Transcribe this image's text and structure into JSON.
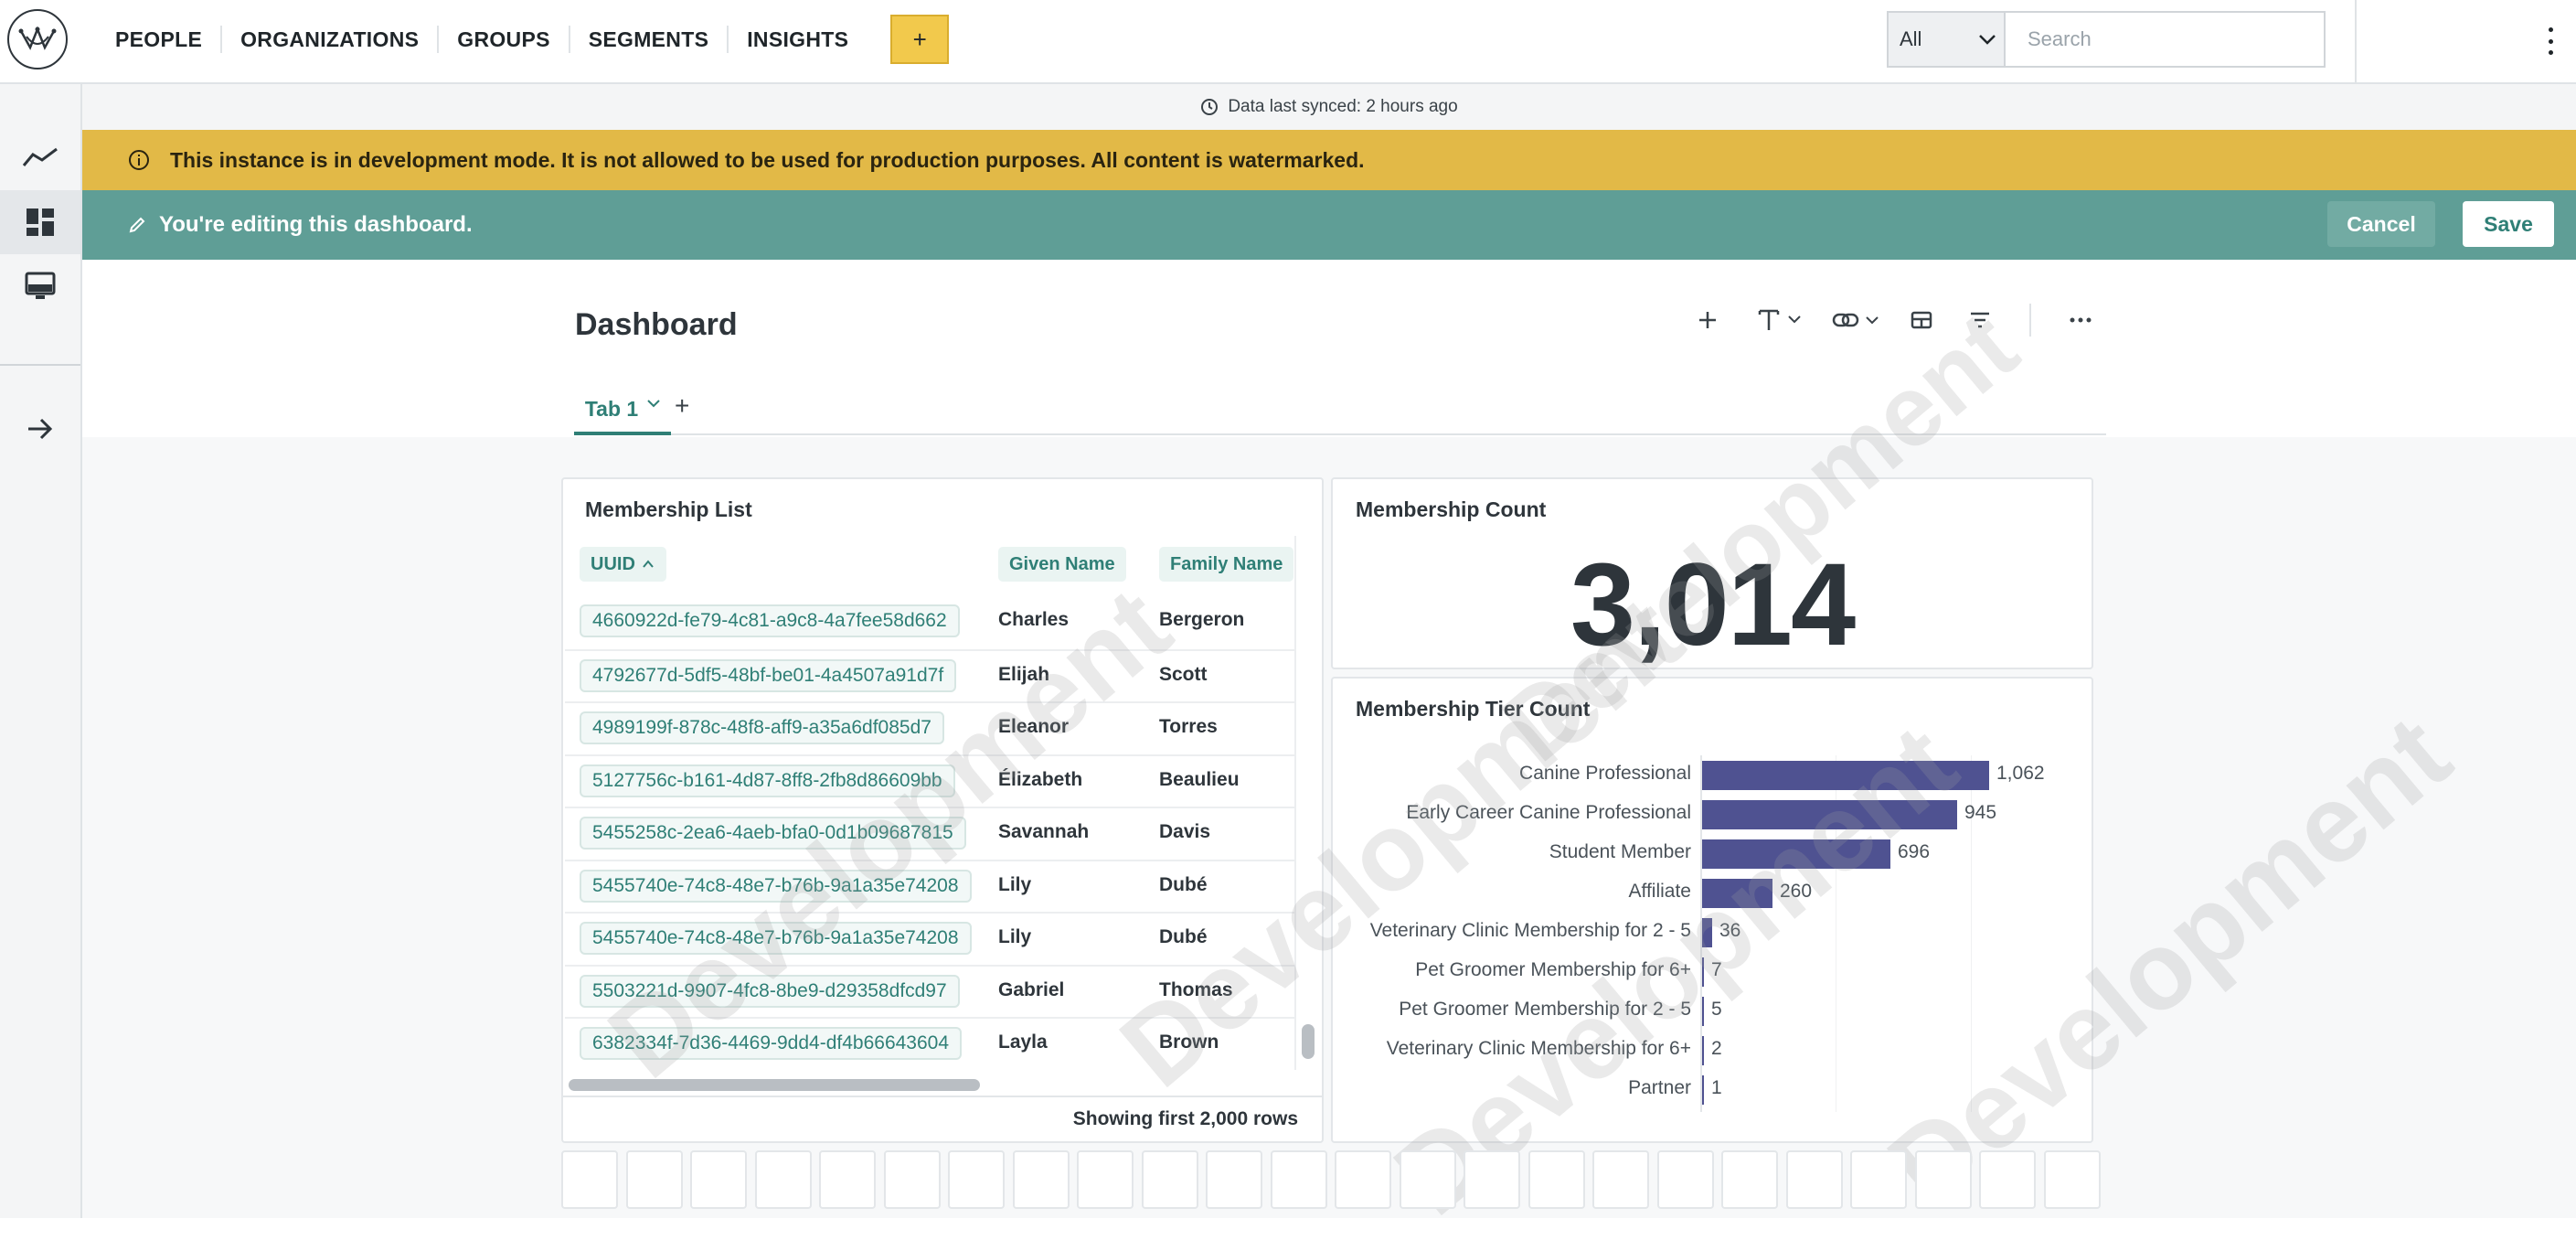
{
  "nav": {
    "items": [
      "PEOPLE",
      "ORGANIZATIONS",
      "GROUPS",
      "SEGMENTS",
      "INSIGHTS"
    ],
    "add_label": "+"
  },
  "search": {
    "scope": "All",
    "placeholder": "Search"
  },
  "sync": {
    "text": "Data last synced: 2 hours ago"
  },
  "dev_banner": {
    "text": "This instance is in development mode. It is not allowed to be used for production purposes. All content is watermarked."
  },
  "edit_banner": {
    "text": "You're editing this dashboard.",
    "cancel_label": "Cancel",
    "save_label": "Save"
  },
  "dashboard": {
    "title": "Dashboard",
    "tabs": [
      {
        "label": "Tab 1"
      }
    ],
    "tab_add": "+"
  },
  "membership_list": {
    "title": "Membership List",
    "columns": [
      "UUID",
      "Given Name",
      "Family Name"
    ],
    "rows": [
      {
        "uuid": "4660922d-fe79-4c81-a9c8-4a7fee58d662",
        "given": "Charles",
        "family": "Bergeron"
      },
      {
        "uuid": "4792677d-5df5-48bf-be01-4a4507a91d7f",
        "given": "Elijah",
        "family": "Scott"
      },
      {
        "uuid": "4989199f-878c-48f8-aff9-a35a6df085d7",
        "given": "Eleanor",
        "family": "Torres"
      },
      {
        "uuid": "5127756c-b161-4d87-8ff8-2fb8d86609bb",
        "given": "Élizabeth",
        "family": "Beaulieu"
      },
      {
        "uuid": "5455258c-2ea6-4aeb-bfa0-0d1b09687815",
        "given": "Savannah",
        "family": "Davis"
      },
      {
        "uuid": "5455740e-74c8-48e7-b76b-9a1a35e74208",
        "given": "Lily",
        "family": "Dubé"
      },
      {
        "uuid": "5455740e-74c8-48e7-b76b-9a1a35e74208",
        "given": "Lily",
        "family": "Dubé"
      },
      {
        "uuid": "5503221d-9907-4fc8-8be9-d29358dfcd97",
        "given": "Gabriel",
        "family": "Thomas"
      },
      {
        "uuid": "6382334f-7d36-4469-9dd4-df4b66643604",
        "given": "Layla",
        "family": "Brown"
      }
    ],
    "footer": "Showing first 2,000 rows"
  },
  "membership_count": {
    "title": "Membership Count",
    "value": "3,014"
  },
  "tier_count": {
    "title": "Membership Tier Count"
  },
  "chart_data": {
    "type": "bar",
    "orientation": "horizontal",
    "title": "Membership Tier Count",
    "categories": [
      "Canine Professional",
      "Early Career Canine Professional",
      "Student Member",
      "Affiliate",
      "Veterinary Clinic Membership for 2 - 5",
      "Pet Groomer Membership for 6+",
      "Pet Groomer Membership for 2 - 5",
      "Veterinary Clinic Membership for 6+",
      "Partner"
    ],
    "values": [
      1062,
      945,
      696,
      260,
      36,
      7,
      5,
      2,
      1
    ],
    "value_labels": [
      "1,062",
      "945",
      "696",
      "260",
      "36",
      "7",
      "5",
      "2",
      "1"
    ],
    "color": "#4f5291"
  },
  "watermark": {
    "text": "Development"
  },
  "colors": {
    "accent": "#2f7f76",
    "warning": "#e2b947",
    "edit": "#5f9e96",
    "bar": "#4f5291"
  }
}
